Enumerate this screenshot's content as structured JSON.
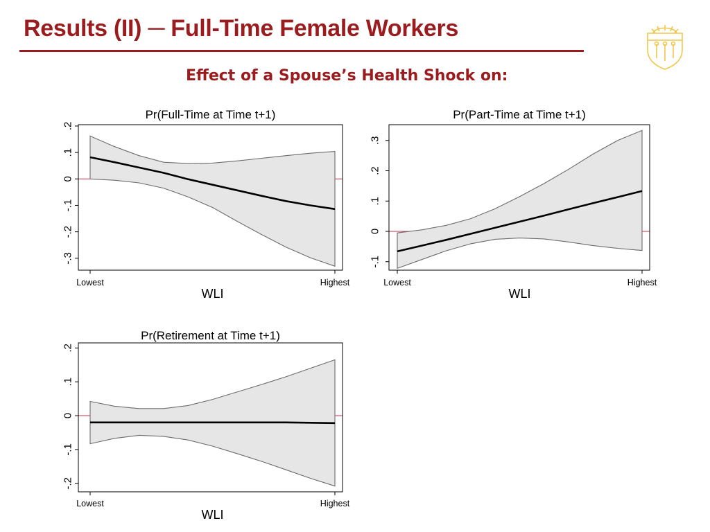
{
  "slide": {
    "title": "Results (II) ─ Full-Time Female Workers",
    "subtitle": "Effect of a Spouse’s Health Shock on:"
  },
  "colors": {
    "title": "#9b1c1f",
    "band_fill": "#e6e6e6",
    "band_edge": "#6b6b6b",
    "line": "#000000",
    "zero_line": "#c0304a",
    "seal": "#f2c64b"
  },
  "icons": {
    "logo": "university-seal-icon"
  },
  "chart_data": [
    {
      "type": "line",
      "title": "Pr(Full-Time at Time t+1)",
      "xlabel": "WLI",
      "ylabel": "",
      "x_tick_labels": [
        "Lowest",
        "Highest"
      ],
      "x": [
        0,
        0.1,
        0.2,
        0.3,
        0.4,
        0.5,
        0.6,
        0.7,
        0.8,
        0.9,
        1
      ],
      "xlim": [
        0,
        1
      ],
      "y_ticks": [
        0.2,
        0.1,
        0,
        -0.1,
        -0.2,
        -0.3
      ],
      "y_tick_labels": [
        ".2",
        ".1",
        "0",
        "-.1",
        "-.2",
        "-.3"
      ],
      "ylim": [
        -0.345,
        0.205
      ],
      "reference_line": 0,
      "grid": false,
      "series": [
        {
          "values": [
            0.082,
            0.063,
            0.043,
            0.023,
            -0.001,
            -0.022,
            -0.043,
            -0.064,
            -0.084,
            -0.1,
            -0.114
          ],
          "upper": [
            0.162,
            0.122,
            0.088,
            0.063,
            0.058,
            0.06,
            0.068,
            0.078,
            0.088,
            0.097,
            0.104
          ],
          "lower": [
            0.0,
            -0.005,
            -0.015,
            -0.035,
            -0.068,
            -0.108,
            -0.16,
            -0.21,
            -0.258,
            -0.298,
            -0.33
          ]
        }
      ]
    },
    {
      "type": "line",
      "title": "Pr(Part-Time at Time t+1)",
      "xlabel": "WLI",
      "ylabel": "",
      "x_tick_labels": [
        "Lowest",
        "Highest"
      ],
      "x": [
        0,
        0.1,
        0.2,
        0.3,
        0.4,
        0.5,
        0.6,
        0.7,
        0.8,
        0.9,
        1
      ],
      "xlim": [
        0,
        1
      ],
      "y_ticks": [
        0.3,
        0.2,
        0.1,
        0,
        -0.1
      ],
      "y_tick_labels": [
        ".3",
        ".2",
        ".1",
        "0",
        "-.1"
      ],
      "ylim": [
        -0.128,
        0.352
      ],
      "reference_line": 0,
      "grid": false,
      "series": [
        {
          "values": [
            -0.066,
            -0.047,
            -0.028,
            -0.008,
            0.012,
            0.032,
            0.052,
            0.073,
            0.093,
            0.113,
            0.133
          ],
          "upper": [
            -0.005,
            0.005,
            0.02,
            0.042,
            0.075,
            0.115,
            0.158,
            0.205,
            0.255,
            0.3,
            0.333
          ],
          "lower": [
            -0.122,
            -0.093,
            -0.064,
            -0.041,
            -0.026,
            -0.022,
            -0.025,
            -0.035,
            -0.047,
            -0.056,
            -0.063
          ]
        }
      ]
    },
    {
      "type": "line",
      "title": "Pr(Retirement at Time t+1)",
      "xlabel": "WLI",
      "ylabel": "",
      "x_tick_labels": [
        "Lowest",
        "Highest"
      ],
      "x": [
        0,
        0.1,
        0.2,
        0.3,
        0.4,
        0.5,
        0.6,
        0.7,
        0.8,
        0.9,
        1
      ],
      "xlim": [
        0,
        1
      ],
      "y_ticks": [
        0.2,
        0.1,
        0,
        -0.1,
        -0.2
      ],
      "y_tick_labels": [
        ".2",
        ".1",
        "0",
        "-.1",
        "-.2"
      ],
      "ylim": [
        -0.225,
        0.215
      ],
      "reference_line": 0,
      "grid": false,
      "series": [
        {
          "values": [
            -0.02,
            -0.02,
            -0.02,
            -0.02,
            -0.02,
            -0.02,
            -0.02,
            -0.02,
            -0.02,
            -0.021,
            -0.022
          ],
          "upper": [
            0.042,
            0.028,
            0.021,
            0.021,
            0.03,
            0.048,
            0.07,
            0.092,
            0.115,
            0.14,
            0.165
          ],
          "lower": [
            -0.083,
            -0.067,
            -0.058,
            -0.061,
            -0.072,
            -0.09,
            -0.112,
            -0.135,
            -0.16,
            -0.185,
            -0.208
          ]
        }
      ]
    }
  ]
}
